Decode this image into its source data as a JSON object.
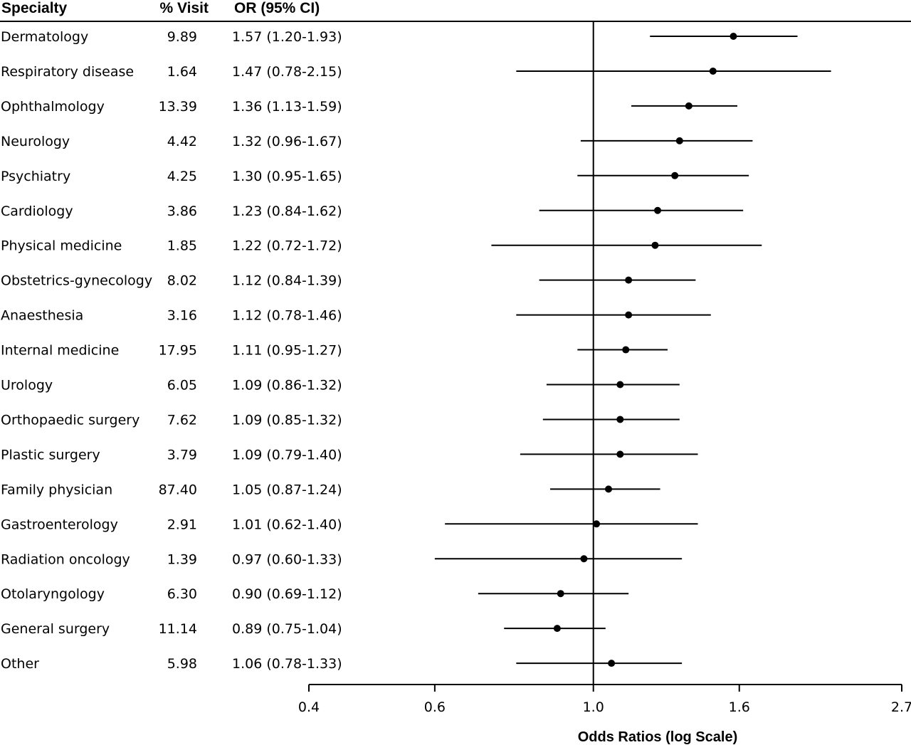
{
  "chart_data": {
    "type": "forest",
    "columns": {
      "specialty": "Specialty",
      "visit": "% Visit",
      "or": "OR (95% CI)"
    },
    "rows": [
      {
        "label": "Dermatology",
        "visit": "9.89",
        "or_text": "1.57 (1.20-1.93)",
        "or": 1.57,
        "lo": 1.2,
        "hi": 1.93
      },
      {
        "label": "Respiratory disease",
        "visit": "1.64",
        "or_text": "1.47 (0.78-2.15)",
        "or": 1.47,
        "lo": 0.78,
        "hi": 2.15
      },
      {
        "label": "Ophthalmology",
        "visit": "13.39",
        "or_text": "1.36 (1.13-1.59)",
        "or": 1.36,
        "lo": 1.13,
        "hi": 1.59
      },
      {
        "label": "Neurology",
        "visit": "4.42",
        "or_text": "1.32 (0.96-1.67)",
        "or": 1.32,
        "lo": 0.96,
        "hi": 1.67
      },
      {
        "label": "Psychiatry",
        "visit": "4.25",
        "or_text": "1.30 (0.95-1.65)",
        "or": 1.3,
        "lo": 0.95,
        "hi": 1.65
      },
      {
        "label": "Cardiology",
        "visit": "3.86",
        "or_text": "1.23 (0.84-1.62)",
        "or": 1.23,
        "lo": 0.84,
        "hi": 1.62
      },
      {
        "label": "Physical medicine",
        "visit": "1.85",
        "or_text": "1.22 (0.72-1.72)",
        "or": 1.22,
        "lo": 0.72,
        "hi": 1.72
      },
      {
        "label": "Obstetrics-gynecology",
        "visit": "8.02",
        "or_text": "1.12 (0.84-1.39)",
        "or": 1.12,
        "lo": 0.84,
        "hi": 1.39
      },
      {
        "label": "Anaesthesia",
        "visit": "3.16",
        "or_text": "1.12 (0.78-1.46)",
        "or": 1.12,
        "lo": 0.78,
        "hi": 1.46
      },
      {
        "label": "Internal medicine",
        "visit": "17.95",
        "or_text": "1.11 (0.95-1.27)",
        "or": 1.11,
        "lo": 0.95,
        "hi": 1.27
      },
      {
        "label": "Urology",
        "visit": "6.05",
        "or_text": "1.09 (0.86-1.32)",
        "or": 1.09,
        "lo": 0.86,
        "hi": 1.32
      },
      {
        "label": "Orthopaedic surgery",
        "visit": "7.62",
        "or_text": "1.09 (0.85-1.32)",
        "or": 1.09,
        "lo": 0.85,
        "hi": 1.32
      },
      {
        "label": "Plastic surgery",
        "visit": "3.79",
        "or_text": "1.09 (0.79-1.40)",
        "or": 1.09,
        "lo": 0.79,
        "hi": 1.4
      },
      {
        "label": "Family physician",
        "visit": "87.40",
        "or_text": "1.05 (0.87-1.24)",
        "or": 1.05,
        "lo": 0.87,
        "hi": 1.24
      },
      {
        "label": "Gastroenterology",
        "visit": "2.91",
        "or_text": "1.01 (0.62-1.40)",
        "or": 1.01,
        "lo": 0.62,
        "hi": 1.4
      },
      {
        "label": "Radiation oncology",
        "visit": "1.39",
        "or_text": "0.97 (0.60-1.33)",
        "or": 0.97,
        "lo": 0.6,
        "hi": 1.33
      },
      {
        "label": "Otolaryngology",
        "visit": "6.30",
        "or_text": "0.90 (0.69-1.12)",
        "or": 0.9,
        "lo": 0.69,
        "hi": 1.12
      },
      {
        "label": "General surgery",
        "visit": "11.14",
        "or_text": "0.89 (0.75-1.04)",
        "or": 0.89,
        "lo": 0.75,
        "hi": 1.04
      },
      {
        "label": "Other",
        "visit": "5.98",
        "or_text": "1.06 (0.78-1.33)",
        "or": 1.06,
        "lo": 0.78,
        "hi": 1.33
      }
    ],
    "xscale": "log",
    "xlim": [
      0.4,
      2.7
    ],
    "xticks": [
      0.4,
      0.6,
      1.0,
      1.6,
      2.7
    ],
    "xtick_labels": [
      "0.4",
      "0.6",
      "1.0",
      "1.6",
      "2.7"
    ],
    "reference_line": 1.0,
    "xlabel": "Odds Ratios (log Scale)",
    "grid": false,
    "marker_color": "#000000"
  }
}
